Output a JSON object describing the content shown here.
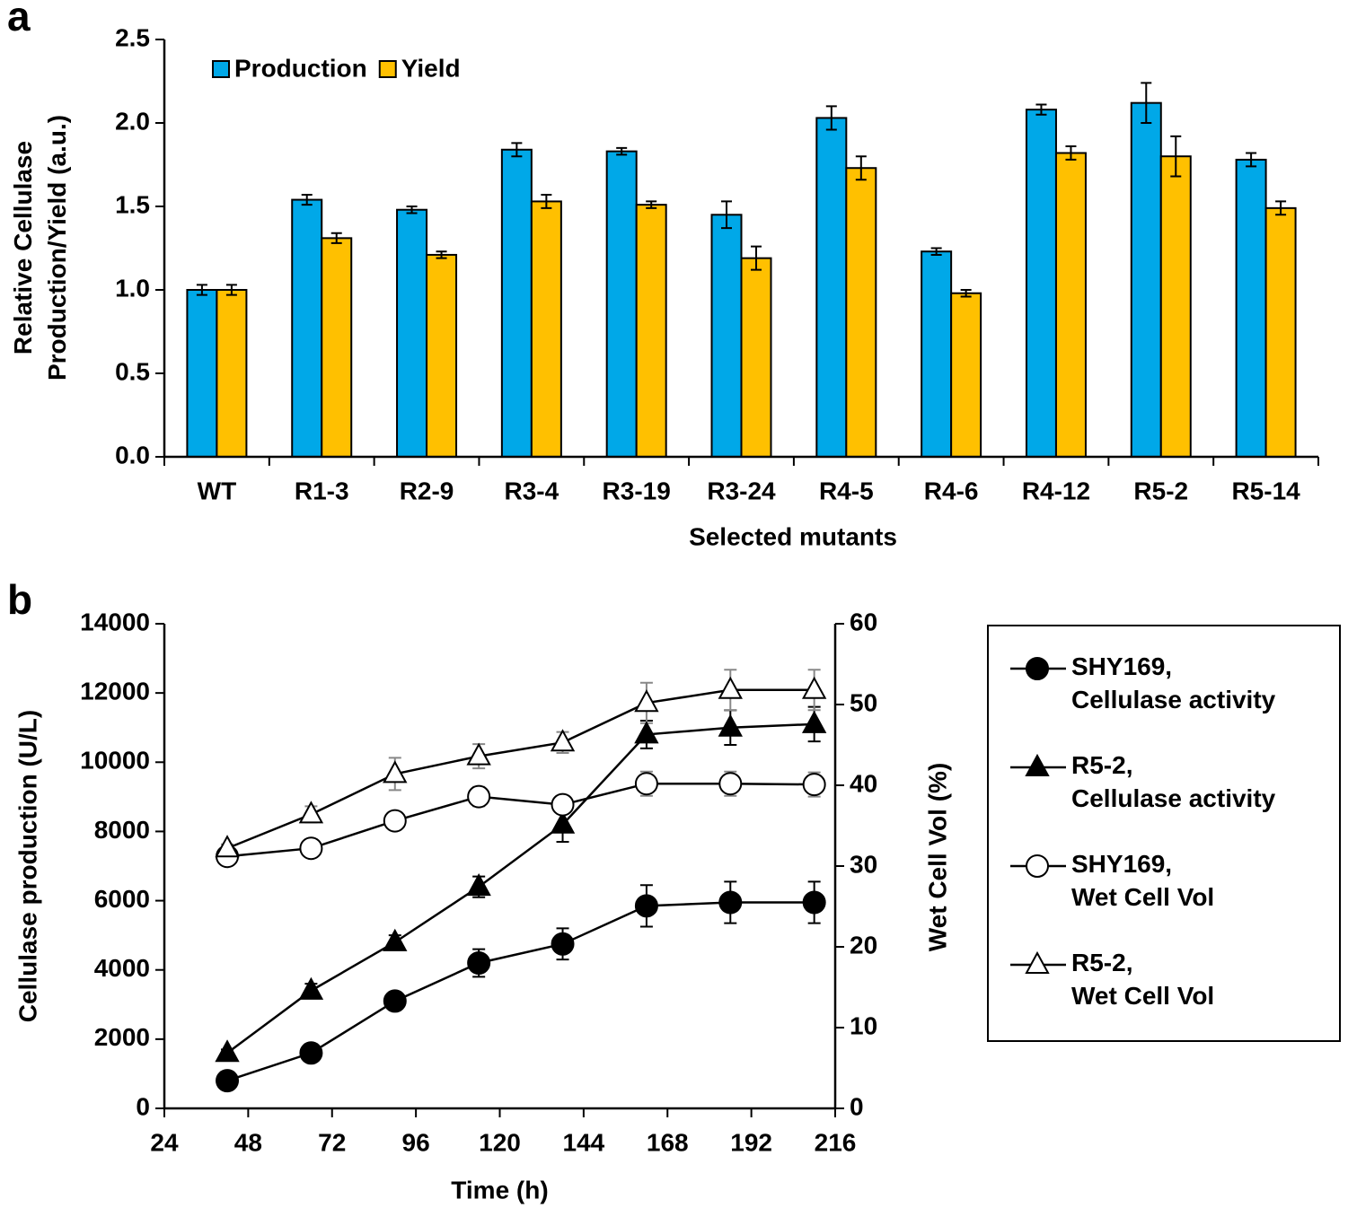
{
  "chart_data": [
    {
      "type": "bar",
      "panel_label": "a",
      "x_label": "Selected mutants",
      "y_label": "Relative Cellulase Production/Yield (a.u.)",
      "categories": [
        "WT",
        "R1-3",
        "R2-9",
        "R3-4",
        "R3-19",
        "R3-24",
        "R4-5",
        "R4-6",
        "R4-12",
        "R5-2",
        "R5-14"
      ],
      "series": [
        {
          "name": "Production",
          "color": "#00a8e8",
          "values": [
            1.0,
            1.54,
            1.48,
            1.84,
            1.83,
            1.45,
            2.03,
            1.23,
            2.08,
            2.12,
            1.78
          ],
          "errors": [
            0.03,
            0.03,
            0.02,
            0.04,
            0.02,
            0.08,
            0.07,
            0.02,
            0.03,
            0.12,
            0.04
          ]
        },
        {
          "name": "Yield",
          "color": "#ffc000",
          "values": [
            1.0,
            1.31,
            1.21,
            1.53,
            1.51,
            1.19,
            1.73,
            0.98,
            1.82,
            1.8,
            1.49
          ],
          "errors": [
            0.03,
            0.03,
            0.02,
            0.04,
            0.02,
            0.07,
            0.07,
            0.02,
            0.04,
            0.12,
            0.04
          ]
        }
      ],
      "ylim": [
        0,
        2.5
      ],
      "yticks": [
        {
          "value": 0,
          "label": "0.0"
        },
        0.5,
        {
          "value": 1,
          "label": "1.0"
        },
        1.5,
        {
          "value": 2,
          "label": "2.0"
        },
        2.5
      ],
      "legend": "top-left"
    },
    {
      "type": "line",
      "panel_label": "b",
      "x_label": "Time (h)",
      "y_label": "Cellulase production (U/L)",
      "y2_label": "Wet Cell Vol (%)",
      "x": [
        42,
        66,
        90,
        114,
        138,
        162,
        186,
        210
      ],
      "series": [
        {
          "name": "SHY169, Cellulase activity",
          "color": "#000000",
          "marker": "circle",
          "marker_fill": "#000000",
          "error_color": "#000000",
          "values": [
            800,
            1600,
            3100,
            4200,
            4750,
            5850,
            5950,
            5950
          ],
          "errors": [
            150,
            100,
            250,
            400,
            450,
            600,
            600,
            600
          ]
        },
        {
          "name": "R5-2, Cellulase activity",
          "color": "#000000",
          "marker": "triangle",
          "marker_fill": "#000000",
          "error_color": "#000000",
          "values": [
            1600,
            3400,
            4800,
            6400,
            8200,
            10800,
            11000,
            11100
          ],
          "errors": [
            100,
            200,
            200,
            300,
            500,
            400,
            500,
            500
          ]
        },
        {
          "name": "SHY169, Wet Cell Vol",
          "color": "#000000",
          "marker": "circle",
          "marker_fill": "#ffffff",
          "error_color": "#888888",
          "axis": "y2",
          "values": [
            31.2,
            32.2,
            35.6,
            38.6,
            37.6,
            40.2,
            40.2,
            40.1
          ],
          "errors": [
            0.5,
            0.6,
            1.0,
            1.2,
            0.8,
            1.5,
            1.5,
            1.5
          ]
        },
        {
          "name": "R5-2, Wet Cell Vol",
          "color": "#000000",
          "marker": "triangle",
          "marker_fill": "#ffffff",
          "error_color": "#888888",
          "axis": "y2",
          "values": [
            32.2,
            36.4,
            41.4,
            43.6,
            45.3,
            50.2,
            51.8,
            51.8
          ],
          "errors": [
            0.5,
            1.0,
            2.0,
            1.5,
            1.3,
            2.5,
            2.5,
            2.5
          ]
        }
      ],
      "xlim": [
        24,
        216
      ],
      "xticks": [
        24,
        48,
        72,
        96,
        120,
        144,
        168,
        192,
        216
      ],
      "ylim": [
        0,
        14000
      ],
      "yticks": [
        0,
        2000,
        4000,
        6000,
        8000,
        10000,
        12000,
        14000
      ],
      "y2lim": [
        0,
        60
      ],
      "y2ticks": [
        0,
        10,
        20,
        30,
        40,
        50,
        60
      ],
      "legend": "right"
    }
  ]
}
